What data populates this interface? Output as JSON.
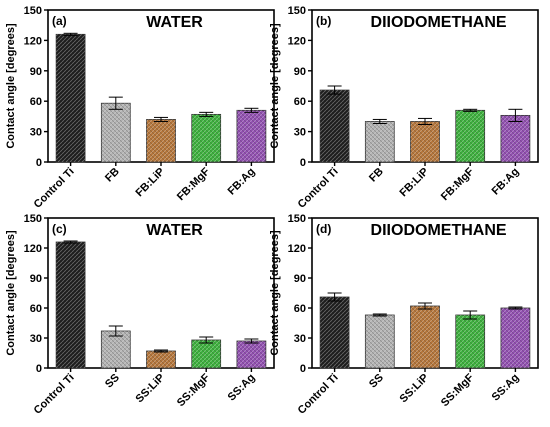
{
  "chart_data": [
    {
      "type": "bar",
      "panel_label": "(a)",
      "title": "WATER",
      "ylabel": "Contact angle [degrees]",
      "xlabel": "",
      "ylim": [
        0,
        150
      ],
      "yticks": [
        0,
        30,
        60,
        90,
        120,
        150
      ],
      "categories": [
        "Control Ti",
        "FB",
        "FB:LiP",
        "FB:MgF",
        "FB:Ag"
      ],
      "values": [
        126,
        58,
        42,
        47,
        51
      ],
      "errors": [
        1,
        6,
        2,
        2,
        2
      ],
      "colors": [
        "#1e1e1e",
        "#b4b4b4",
        "#b8773a",
        "#3cb43c",
        "#9450b4"
      ],
      "grid": false,
      "legend": "none"
    },
    {
      "type": "bar",
      "panel_label": "(b)",
      "title": "DIIODOMETHANE",
      "ylabel": "Contact angle [degrees]",
      "xlabel": "",
      "ylim": [
        0,
        150
      ],
      "yticks": [
        0,
        30,
        60,
        90,
        120,
        150
      ],
      "categories": [
        "Control Ti",
        "FB",
        "FB:LiP",
        "FB:MgF",
        "FB:Ag"
      ],
      "values": [
        71,
        40,
        40,
        51,
        46
      ],
      "errors": [
        4,
        2,
        3,
        1,
        6
      ],
      "colors": [
        "#1e1e1e",
        "#b4b4b4",
        "#b8773a",
        "#3cb43c",
        "#9450b4"
      ],
      "grid": false,
      "legend": "none"
    },
    {
      "type": "bar",
      "panel_label": "(c)",
      "title": "WATER",
      "ylabel": "Contact angle [degrees]",
      "xlabel": "",
      "ylim": [
        0,
        150
      ],
      "yticks": [
        0,
        30,
        60,
        90,
        120,
        150
      ],
      "categories": [
        "Control Ti",
        "SS",
        "SS:LiP",
        "SS:MgF",
        "SS:Ag"
      ],
      "values": [
        126,
        37,
        17,
        28,
        27
      ],
      "errors": [
        1,
        5,
        1,
        3,
        2
      ],
      "colors": [
        "#1e1e1e",
        "#b4b4b4",
        "#b8773a",
        "#3cb43c",
        "#9450b4"
      ],
      "grid": false,
      "legend": "none"
    },
    {
      "type": "bar",
      "panel_label": "(d)",
      "title": "DIIODOMETHANE",
      "ylabel": "Contact angle [degrees]",
      "xlabel": "",
      "ylim": [
        0,
        150
      ],
      "yticks": [
        0,
        30,
        60,
        90,
        120,
        150
      ],
      "categories": [
        "Control Ti",
        "SS",
        "SS:LiP",
        "SS:MgF",
        "SS:Ag"
      ],
      "values": [
        71,
        53,
        62,
        53,
        60
      ],
      "errors": [
        4,
        1,
        3,
        4,
        1
      ],
      "colors": [
        "#1e1e1e",
        "#b4b4b4",
        "#b8773a",
        "#3cb43c",
        "#9450b4"
      ],
      "grid": false,
      "legend": "none"
    }
  ]
}
